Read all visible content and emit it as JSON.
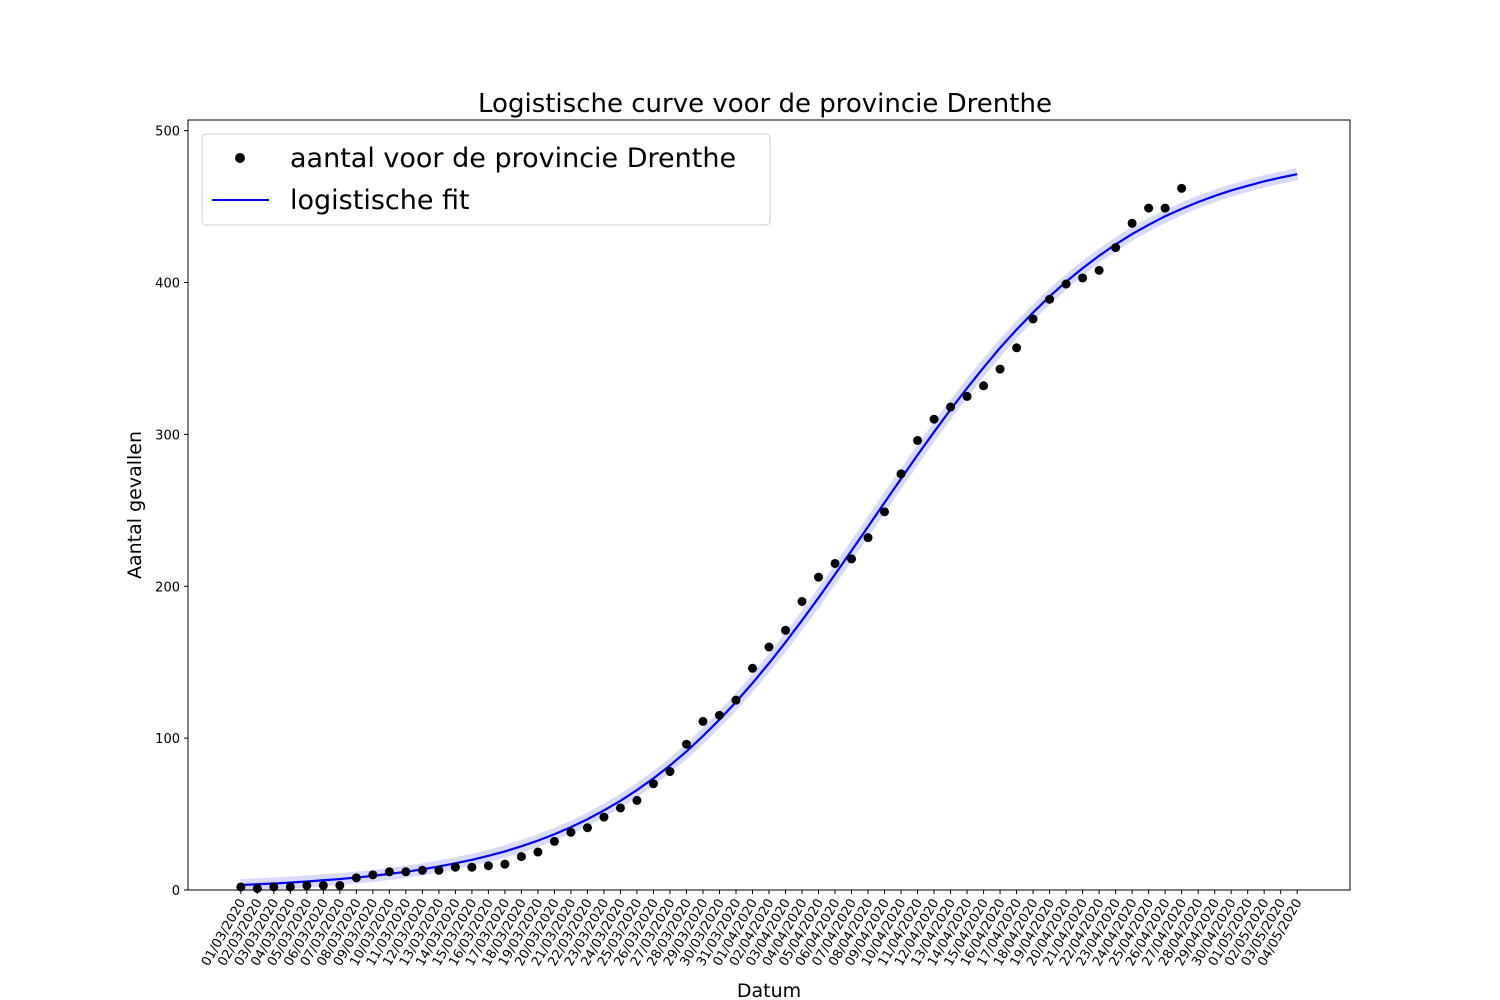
{
  "chart_data": {
    "type": "line",
    "title": "Logistische curve voor de provincie Drenthe",
    "x_label": "Datum",
    "y_label": "Aantal gevallen",
    "categories": [
      "01/03/2020",
      "02/03/2020",
      "03/03/2020",
      "04/03/2020",
      "05/03/2020",
      "06/03/2020",
      "07/03/2020",
      "08/03/2020",
      "09/03/2020",
      "10/03/2020",
      "11/03/2020",
      "12/03/2020",
      "13/03/2020",
      "14/03/2020",
      "15/03/2020",
      "16/03/2020",
      "17/03/2020",
      "18/03/2020",
      "19/03/2020",
      "20/03/2020",
      "21/03/2020",
      "22/03/2020",
      "23/03/2020",
      "24/03/2020",
      "25/03/2020",
      "26/03/2020",
      "27/03/2020",
      "28/03/2020",
      "29/03/2020",
      "30/03/2020",
      "31/03/2020",
      "01/04/2020",
      "02/04/2020",
      "03/04/2020",
      "04/04/2020",
      "05/04/2020",
      "06/04/2020",
      "07/04/2020",
      "08/04/2020",
      "09/04/2020",
      "10/04/2020",
      "11/04/2020",
      "12/04/2020",
      "13/04/2020",
      "14/04/2020",
      "15/04/2020",
      "16/04/2020",
      "17/04/2020",
      "18/04/2020",
      "19/04/2020",
      "20/04/2020",
      "21/04/2020",
      "22/04/2020",
      "23/04/2020",
      "24/04/2020",
      "25/04/2020",
      "26/04/2020",
      "27/04/2020",
      "28/04/2020",
      "29/04/2020",
      "30/04/2020",
      "01/05/2020",
      "02/05/2020",
      "03/05/2020",
      "04/05/2020"
    ],
    "series": [
      {
        "name": "aantal voor de provincie Drenthe",
        "color": "#000000",
        "style": "points",
        "values": [
          2,
          1,
          2,
          2,
          3,
          3,
          3,
          8,
          10,
          12,
          12,
          13,
          13,
          15,
          15,
          16,
          17,
          22,
          25,
          32,
          38,
          41,
          48,
          54,
          59,
          70,
          78,
          96,
          111,
          115,
          125,
          146,
          160,
          171,
          190,
          206,
          215,
          218,
          232,
          249,
          274,
          296,
          310,
          318,
          325,
          332,
          343,
          357,
          376,
          389,
          399,
          403,
          408,
          423,
          439,
          449,
          449,
          462,
          null,
          null,
          null,
          null,
          null,
          null,
          null
        ]
      },
      {
        "name": "logistische fit",
        "color": "#0000ff",
        "style": "line",
        "values": [
          3.3,
          3.8,
          4.3,
          4.9,
          5.6,
          6.4,
          7.2,
          8.2,
          9.3,
          10.6,
          12.0,
          13.6,
          15.5,
          17.6,
          19.9,
          22.5,
          25.4,
          28.8,
          32.5,
          36.7,
          41.4,
          46.6,
          52.4,
          58.7,
          65.8,
          73.5,
          82.0,
          91.2,
          101.4,
          112.2,
          123.8,
          136.2,
          149.3,
          163.1,
          177.5,
          192.4,
          207.8,
          223.4,
          239.2,
          255.1,
          270.8,
          286.4,
          301.6,
          316.3,
          330.4,
          344.0,
          357.0,
          369.0,
          380.2,
          390.8,
          400.5,
          409.4,
          417.6,
          425.1,
          431.9,
          438.0,
          443.6,
          448.5,
          453.0,
          457.0,
          460.6,
          463.7,
          466.6,
          469.1,
          471.3
        ]
      }
    ],
    "ylim": [
      0,
      507
    ],
    "yticks": [
      0,
      100,
      200,
      300,
      400,
      500
    ],
    "legend": "upper left",
    "grid": false
  }
}
